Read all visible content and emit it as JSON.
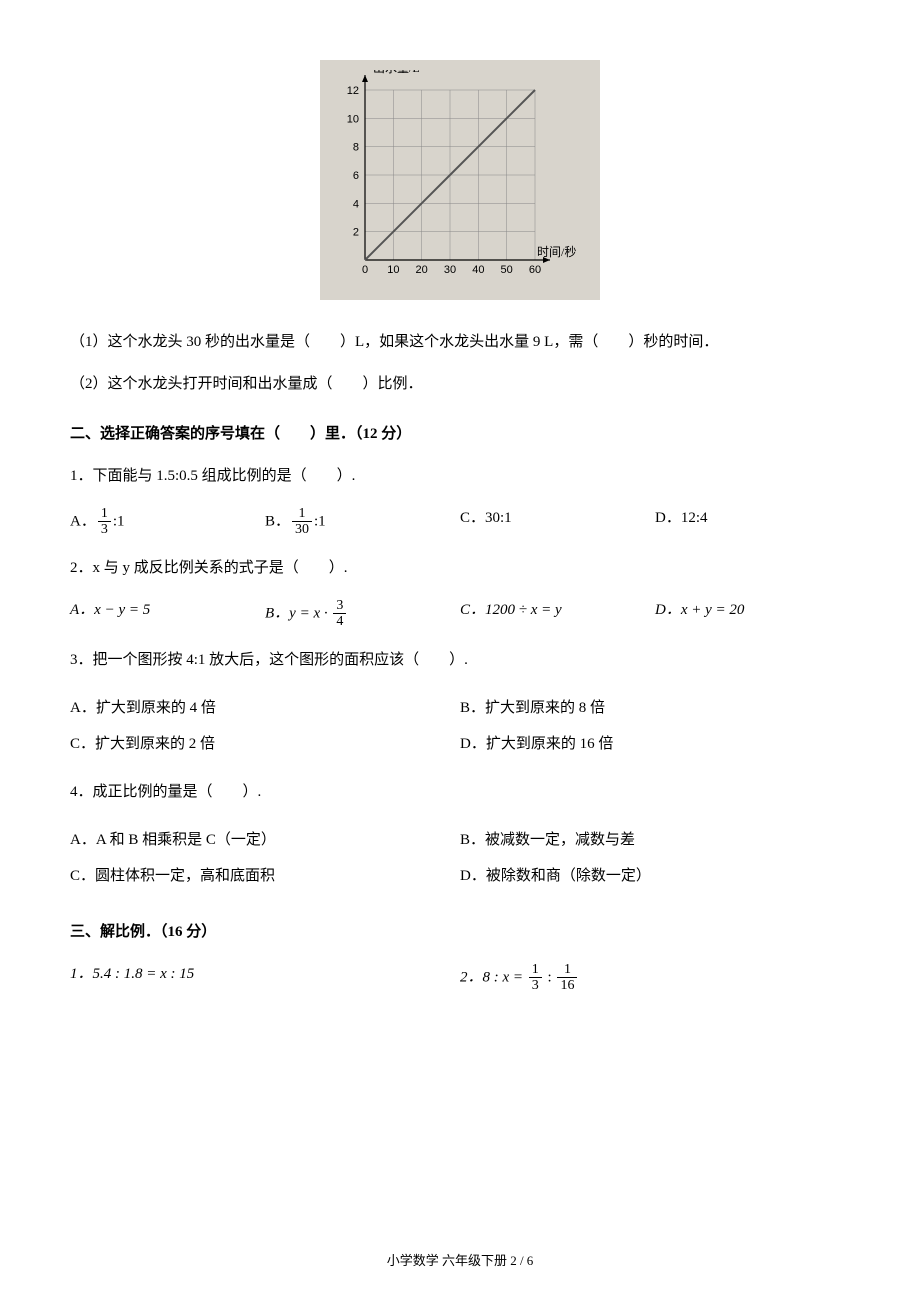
{
  "chart": {
    "type": "line",
    "y_label": "出水量/L",
    "x_label": "时间/秒",
    "x_ticks": [
      0,
      10,
      20,
      30,
      40,
      50,
      60
    ],
    "y_ticks": [
      0,
      2,
      4,
      6,
      8,
      10,
      12
    ],
    "xlim": [
      0,
      60
    ],
    "ylim": [
      0,
      12
    ],
    "points": [
      [
        0,
        0
      ],
      [
        10,
        2
      ],
      [
        20,
        4
      ],
      [
        30,
        6
      ],
      [
        40,
        8
      ],
      [
        50,
        10
      ],
      [
        60,
        12
      ]
    ],
    "line_color": "#555555",
    "grid_color": "#888888",
    "bg_color": "#d8d4cc",
    "axis_color": "#000000",
    "label_fontsize": 11
  },
  "q1_1": "（1）这个水龙头 30 秒的出水量是（　　）L，如果这个水龙头出水量 9 L，需（　　）秒的时间．",
  "q1_2": "（2）这个水龙头打开时间和出水量成（　　）比例．",
  "section2_title": "二、选择正确答案的序号填在（　　）里．（12 分）",
  "s2q1": "1．下面能与 1.5:0.5 组成比例的是（　　）.",
  "s2q1_opts": {
    "A_prefix": "A．",
    "A_num": "1",
    "A_den": "3",
    "A_suffix": ":1",
    "B_prefix": "B．",
    "B_num": "1",
    "B_den": "30",
    "B_suffix": ":1",
    "C": "C．30:1",
    "D": "D．12:4"
  },
  "s2q2": "2．x 与 y 成反比例关系的式子是（　　）.",
  "s2q2_opts": {
    "A": "A．x − y = 5",
    "B_prefix": "B．y = x · ",
    "B_num": "3",
    "B_den": "4",
    "C": "C．1200 ÷ x = y",
    "D": "D．x + y = 20"
  },
  "s2q3": "3．把一个图形按 4:1 放大后，这个图形的面积应该（　　）.",
  "s2q3_opts": {
    "A": "A．扩大到原来的 4 倍",
    "B": "B．扩大到原来的 8 倍",
    "C": "C．扩大到原来的 2 倍",
    "D": "D．扩大到原来的 16 倍"
  },
  "s2q4": "4．成正比例的量是（　　）.",
  "s2q4_opts": {
    "A": "A．A 和 B 相乘积是 C（一定）",
    "B": "B．被减数一定，减数与差",
    "C": "C．圆柱体积一定，高和底面积",
    "D": "D．被除数和商（除数一定）"
  },
  "section3_title": "三、解比例．（16 分）",
  "s3q1": "1．5.4 : 1.8 = x : 15",
  "s3q2_prefix": "2．8 : x = ",
  "s3q2_n1": "1",
  "s3q2_d1": "3",
  "s3q2_mid": " : ",
  "s3q2_n2": "1",
  "s3q2_d2": "16",
  "footer": "小学数学 六年级下册 2 / 6"
}
